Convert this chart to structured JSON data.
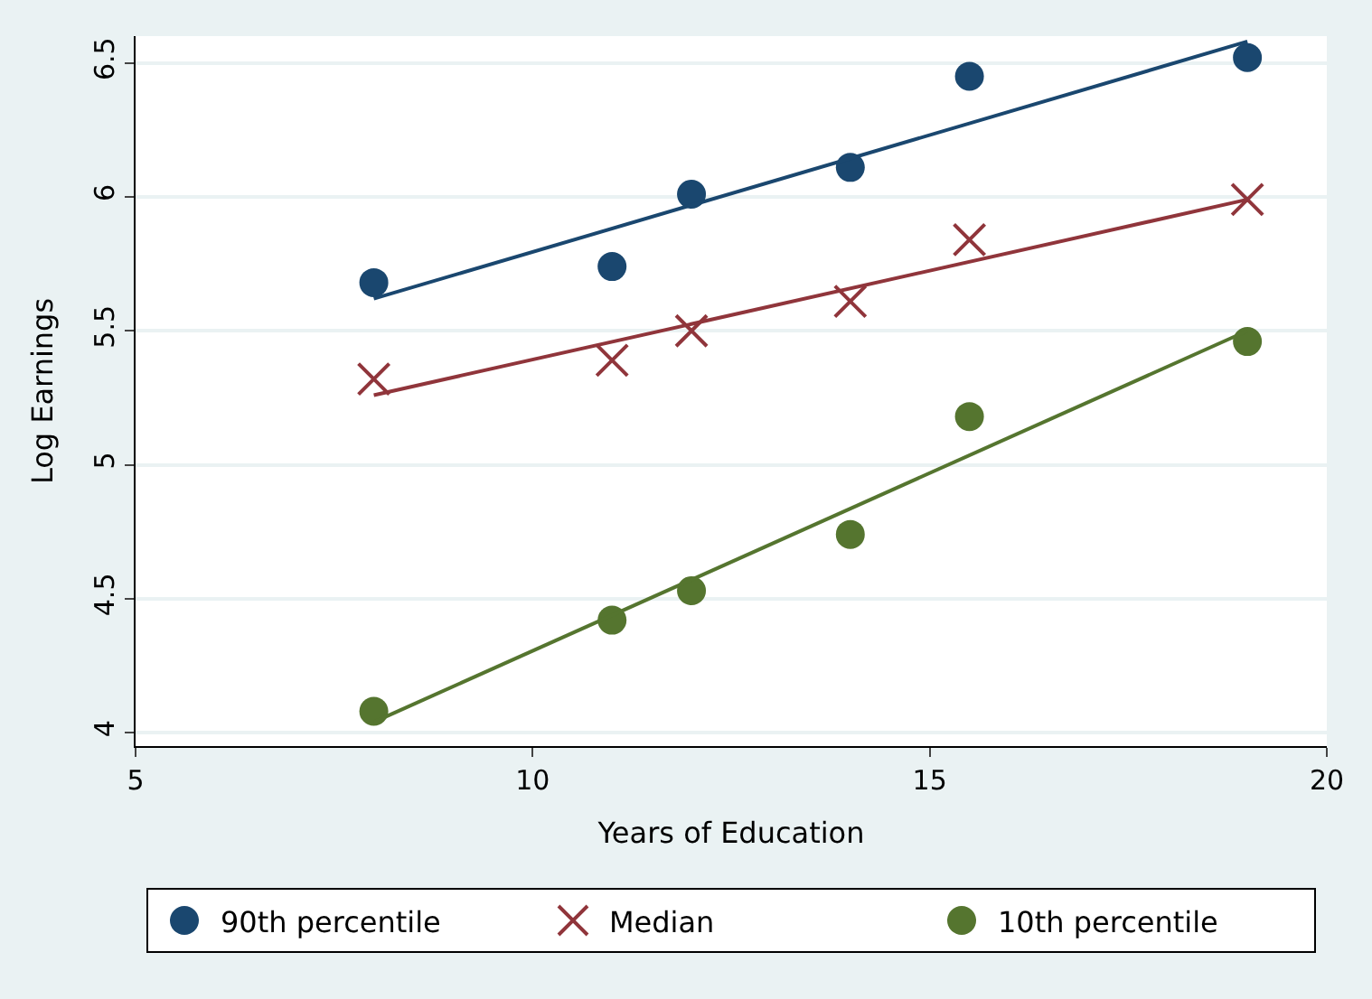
{
  "chart_data": {
    "type": "scatter",
    "xlabel": "Years of Education",
    "ylabel": "Log Earnings",
    "xlim": [
      5,
      20
    ],
    "xticks": [
      5,
      10,
      15,
      20
    ],
    "ylim": [
      3.95,
      6.6
    ],
    "yticks": [
      4,
      4.5,
      5,
      5.5,
      6,
      6.5
    ],
    "grid": "y",
    "legend": "bottom",
    "series": [
      {
        "name": "90th percentile",
        "color": "#1a476f",
        "marker": "circle",
        "x": [
          8,
          11,
          12,
          14,
          15.5,
          19
        ],
        "values": [
          5.68,
          5.74,
          6.01,
          6.11,
          6.45,
          6.52
        ]
      },
      {
        "name": "Median",
        "color": "#90353b",
        "marker": "cross",
        "x": [
          8,
          11,
          12,
          14,
          15.5,
          19
        ],
        "values": [
          5.32,
          5.39,
          5.5,
          5.61,
          5.84,
          5.99
        ]
      },
      {
        "name": "10th percentile",
        "color": "#55752f",
        "marker": "circle",
        "x": [
          8,
          11,
          12,
          14,
          15.5,
          19
        ],
        "values": [
          4.08,
          4.42,
          4.53,
          4.74,
          5.18,
          5.46
        ]
      },
      {
        "type": "line",
        "color": "#1a476f",
        "x": [
          8,
          19
        ],
        "values": [
          5.62,
          6.58
        ]
      },
      {
        "type": "line",
        "color": "#90353b",
        "x": [
          8,
          19
        ],
        "values": [
          5.26,
          5.99
        ]
      },
      {
        "type": "line",
        "color": "#55752f",
        "x": [
          8,
          19
        ],
        "values": [
          4.04,
          5.5
        ]
      }
    ]
  }
}
